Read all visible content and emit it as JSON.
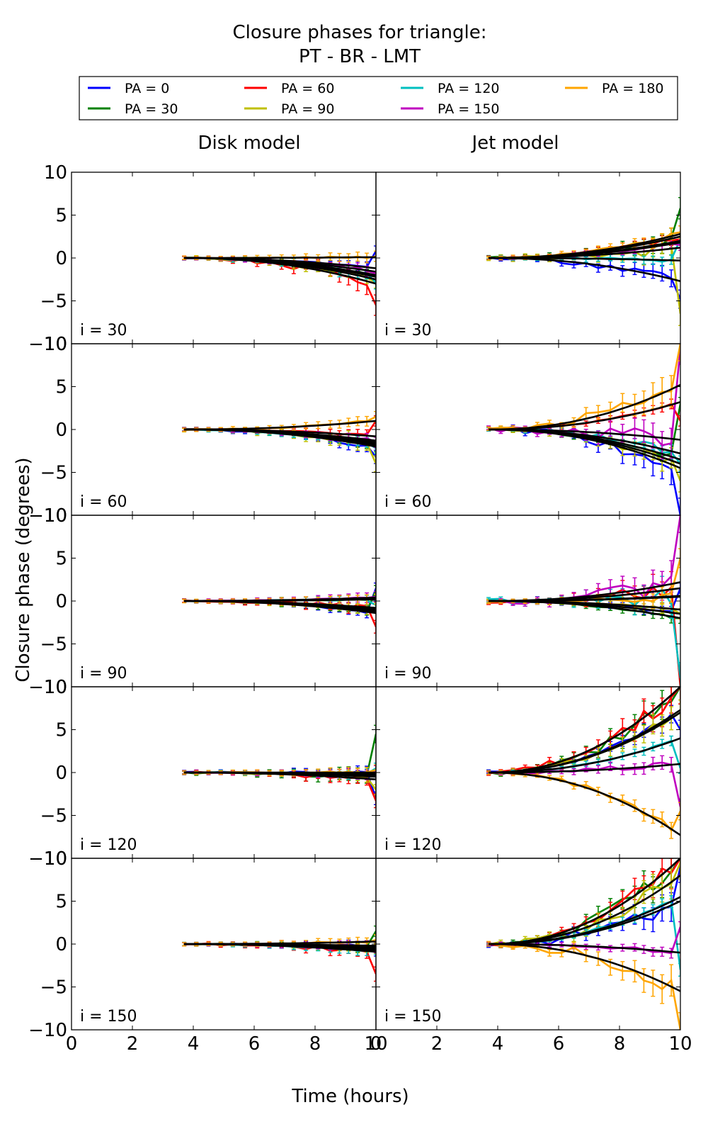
{
  "chart_data": {
    "type": "line",
    "title": "Closure phases for triangle:",
    "subtitle": "PT - BR - LMT",
    "xlabel": "Time (hours)",
    "ylabel": "Closure phase (degrees)",
    "xlim": [
      0,
      10
    ],
    "ylim": [
      -10,
      10
    ],
    "xticks": [
      "0",
      "2",
      "4",
      "6",
      "8",
      "10"
    ],
    "yticks": [
      "−10",
      "−5",
      "0",
      "5",
      "10"
    ],
    "columns": [
      "Disk model",
      "Jet model"
    ],
    "rows": [
      "i = 30",
      "i = 60",
      "i = 90",
      "i = 120",
      "i = 150"
    ],
    "time": [
      3.7,
      4.1,
      4.5,
      4.9,
      5.3,
      5.7,
      6.1,
      6.5,
      6.9,
      7.3,
      7.7,
      8.1,
      8.5,
      8.8,
      9.1,
      9.4,
      9.7,
      10.0
    ],
    "legend": [
      {
        "label": "PA = 0",
        "color": "#0000ff"
      },
      {
        "label": "PA = 30",
        "color": "#008000"
      },
      {
        "label": "PA = 60",
        "color": "#ff0000"
      },
      {
        "label": "PA = 90",
        "color": "#bfbf00"
      },
      {
        "label": "PA = 120",
        "color": "#00bfbf"
      },
      {
        "label": "PA = 150",
        "color": "#bf00bf"
      },
      {
        "label": "PA = 180",
        "color": "#ffa500"
      }
    ],
    "panels": [
      {
        "column": "Disk model",
        "row": "i = 30",
        "model_end": [
          -1.2,
          -2.0,
          -3.0,
          -2.5,
          -2.2,
          -1.6,
          0.1
        ],
        "data_end": [
          0.8,
          -2.2,
          -5.5,
          -2.8,
          -2.9,
          -1.8,
          0.2
        ]
      },
      {
        "column": "Jet model",
        "row": "i = 30",
        "model_end": [
          -2.7,
          2.0,
          2.5,
          1.2,
          -0.3,
          1.8,
          2.8
        ],
        "data_end": [
          -4.8,
          5.8,
          2.2,
          -6.5,
          2.2,
          1.5,
          3.0
        ]
      },
      {
        "column": "Disk model",
        "row": "i = 60",
        "model_end": [
          -2.0,
          -1.8,
          -0.8,
          -1.5,
          -1.7,
          -1.3,
          1.0
        ],
        "data_end": [
          -3.2,
          -2.0,
          1.0,
          -4.0,
          -2.2,
          -1.5,
          1.5
        ]
      },
      {
        "column": "Jet model",
        "row": "i = 60",
        "model_end": [
          -4.5,
          -3.5,
          3.2,
          -4.0,
          -2.8,
          -1.2,
          5.2
        ],
        "data_end": [
          -10.0,
          3.0,
          1.0,
          -6.0,
          -4.0,
          9.5,
          10.0
        ]
      },
      {
        "column": "Disk model",
        "row": "i = 90",
        "model_end": [
          -1.4,
          -1.2,
          -0.8,
          -1.0,
          0.2,
          0.4,
          0.3
        ],
        "data_end": [
          1.5,
          1.2,
          -3.0,
          -0.8,
          -0.5,
          0.5,
          0.2
        ]
      },
      {
        "column": "Jet model",
        "row": "i = 90",
        "model_end": [
          -1.5,
          -2.0,
          1.5,
          -1.0,
          0.6,
          2.2,
          0.5
        ],
        "data_end": [
          1.5,
          -2.0,
          -10.0,
          -1.5,
          -9.0,
          10.0,
          5.0
        ]
      },
      {
        "column": "Disk model",
        "row": "i = 120",
        "model_end": [
          -0.2,
          -0.5,
          -0.8,
          -0.4,
          -0.3,
          -0.2,
          0.0
        ],
        "data_end": [
          -3.0,
          4.5,
          -3.3,
          -2.0,
          0.5,
          0.2,
          0.3
        ]
      },
      {
        "column": "Jet model",
        "row": "i = 120",
        "model_end": [
          7.3,
          10.0,
          10.0,
          7.0,
          4.0,
          1.0,
          -7.3
        ],
        "data_end": [
          5.0,
          10.0,
          10.0,
          7.0,
          0.5,
          -4.0,
          -4.5
        ]
      },
      {
        "column": "Disk model",
        "row": "i = 150",
        "model_end": [
          -0.2,
          -0.4,
          -0.8,
          -0.6,
          -0.9,
          -0.3,
          0.3
        ],
        "data_end": [
          -0.8,
          1.5,
          -3.5,
          -0.5,
          -0.6,
          -0.4,
          0.5
        ]
      },
      {
        "column": "Jet model",
        "row": "i = 150",
        "model_end": [
          5.0,
          10.0,
          10.0,
          8.0,
          5.5,
          -1.0,
          -5.5
        ],
        "data_end": [
          9.0,
          10.0,
          10.0,
          9.5,
          -3.0,
          2.0,
          -10.0
        ]
      }
    ]
  }
}
